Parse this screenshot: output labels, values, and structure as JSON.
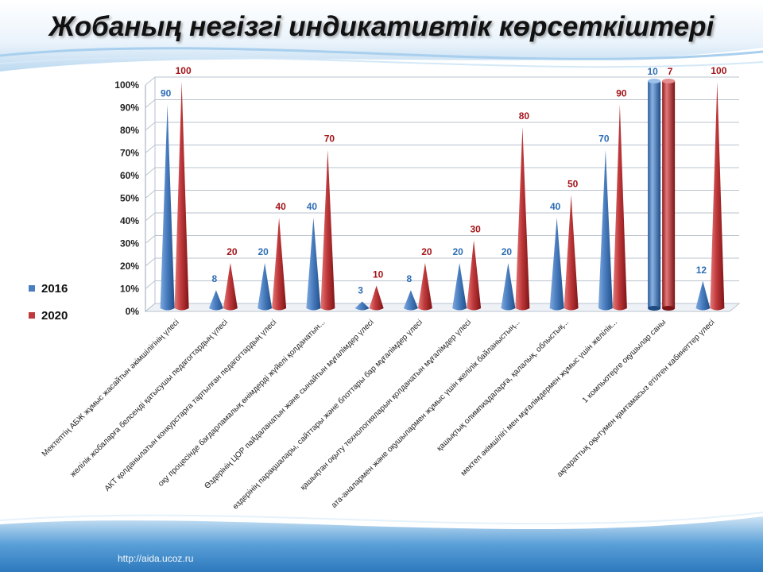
{
  "title": "Жобаның негізгі индикативтік көрсеткіштері",
  "watermark": "http://aida.ucoz.ru",
  "colors": {
    "series_2016": "#4a7ec0",
    "series_2020": "#c0393b",
    "label_2016": "#2e6db4",
    "label_2020": "#a31419"
  },
  "chart_data": {
    "type": "bar",
    "title": "Жобаның негізгі индикативтік көрсеткіштері",
    "ylim": [
      0,
      100
    ],
    "yticks": [
      "0%",
      "10%",
      "20%",
      "30%",
      "40%",
      "50%",
      "60%",
      "70%",
      "80%",
      "90%",
      "100%"
    ],
    "legend_position": "left",
    "grid": true,
    "categories": [
      "Мектептің АБЖ жұмыс жасайтын әкімшілігінің үлесі",
      "желілік жобаларға белсенді қатысушы педагогтардың үлесі",
      "АКТ қолданылатын конкурстарға тартылған педагогтардың үлесі",
      "оқу процесінде бағдарламалық өнімдерді жүйелі қолданатын...",
      "Өздерінің ЦОР пайдаланатын және сынайтын мұғалімдер үлесі",
      "өздерінің парақшалары, сайттары және блоттары бар мұғалімдер үлесі",
      "қашықтан оқыту технологияларын қолданатын мұғалімдер үлесі",
      "ата-аналармен және оқушылармен жұмыс үшін желілік байланыстың...",
      "қашықтық олимпиадаларға, қалалық, облыстық...",
      "мектеп әкімшілігі мен мұғалімдермен жұмыс үшін желілік...",
      "1 компьютерге оқушылар саны",
      "ақпараттық оқытумен қамтамасыз етілген кабинеттер үлесі"
    ],
    "series": [
      {
        "name": "2016",
        "values": [
          90,
          8,
          20,
          40,
          3,
          8,
          20,
          20,
          40,
          70,
          10,
          12
        ],
        "labels": [
          "90",
          "8",
          "20",
          "40",
          "3",
          "8",
          "20",
          "20",
          "40",
          "70",
          "10",
          "12"
        ]
      },
      {
        "name": "2020",
        "values": [
          100,
          20,
          40,
          70,
          10,
          20,
          30,
          80,
          50,
          90,
          7,
          100
        ],
        "labels": [
          "100",
          "20",
          "40",
          "70",
          "10",
          "20",
          "30",
          "80",
          "50",
          "90",
          "7",
          "100"
        ]
      }
    ]
  }
}
